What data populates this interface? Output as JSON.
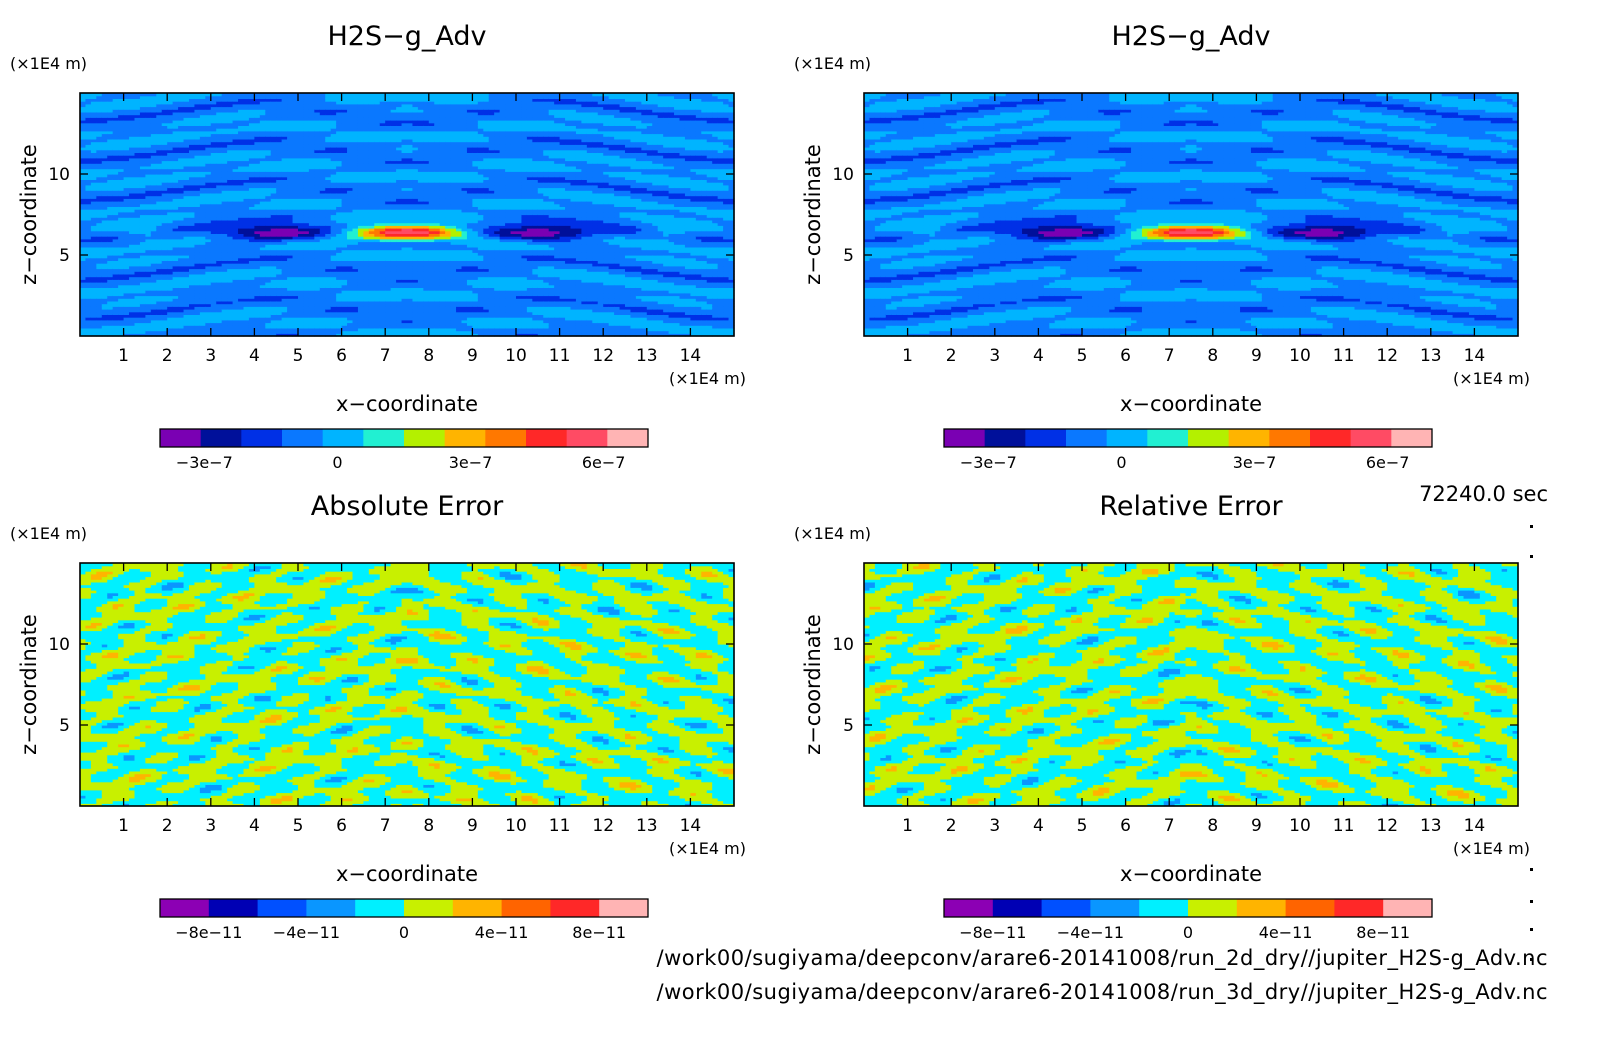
{
  "time_label": "72240.0 sec",
  "file_paths": [
    "/work00/sugiyama/deepconv/arare6-20141008/run_2d_dry//jupiter_H2S-g_Adv.nc",
    "/work00/sugiyama/deepconv/arare6-20141008/run_3d_dry//jupiter_H2S-g_Adv.nc"
  ],
  "chart_data": [
    {
      "type": "heatmap",
      "title": "H2S−g_Adv",
      "xlabel": "x−coordinate",
      "ylabel": "z−coordinate",
      "x_unit": "(×1E4 m)",
      "y_unit": "(×1E4 m)",
      "xlim": [
        0,
        15
      ],
      "ylim": [
        0,
        15
      ],
      "x_ticks": [
        1,
        2,
        3,
        4,
        5,
        6,
        7,
        8,
        9,
        10,
        11,
        12,
        13,
        14
      ],
      "y_ticks": [
        5,
        10
      ],
      "pattern": "field",
      "colorbar": {
        "levels": [
          -4e-07,
          -3e-07,
          -2e-07,
          -1e-07,
          0,
          1e-07,
          2e-07,
          3e-07,
          4e-07,
          5e-07,
          6e-07,
          7e-07
        ],
        "colors": [
          "#7a00b3",
          "#00109a",
          "#0030e6",
          "#0a78ff",
          "#00b4ff",
          "#21f0d2",
          "#b4f000",
          "#ffb400",
          "#ff7800",
          "#ff2828",
          "#ff4b64",
          "#ffb4b4"
        ],
        "tick_values": [
          -3e-07,
          0,
          3e-07,
          6e-07
        ],
        "tick_labels": [
          "−3e−7",
          "0",
          "3e−7",
          "6e−7"
        ]
      }
    },
    {
      "type": "heatmap",
      "title": "H2S−g_Adv",
      "xlabel": "x−coordinate",
      "ylabel": "z−coordinate",
      "x_unit": "(×1E4 m)",
      "y_unit": "(×1E4 m)",
      "xlim": [
        0,
        15
      ],
      "ylim": [
        0,
        15
      ],
      "x_ticks": [
        1,
        2,
        3,
        4,
        5,
        6,
        7,
        8,
        9,
        10,
        11,
        12,
        13,
        14
      ],
      "y_ticks": [
        5,
        10
      ],
      "pattern": "field",
      "colorbar": {
        "levels": [
          -4e-07,
          -3e-07,
          -2e-07,
          -1e-07,
          0,
          1e-07,
          2e-07,
          3e-07,
          4e-07,
          5e-07,
          6e-07,
          7e-07
        ],
        "colors": [
          "#7a00b3",
          "#00109a",
          "#0030e6",
          "#0a78ff",
          "#00b4ff",
          "#21f0d2",
          "#b4f000",
          "#ffb400",
          "#ff7800",
          "#ff2828",
          "#ff4b64",
          "#ffb4b4"
        ],
        "tick_values": [
          -3e-07,
          0,
          3e-07,
          6e-07
        ],
        "tick_labels": [
          "−3e−7",
          "0",
          "3e−7",
          "6e−7"
        ]
      }
    },
    {
      "type": "heatmap",
      "title": "Absolute Error",
      "xlabel": "x−coordinate",
      "ylabel": "z−coordinate",
      "x_unit": "(×1E4 m)",
      "y_unit": "(×1E4 m)",
      "xlim": [
        0,
        15
      ],
      "ylim": [
        0,
        15
      ],
      "x_ticks": [
        1,
        2,
        3,
        4,
        5,
        6,
        7,
        8,
        9,
        10,
        11,
        12,
        13,
        14
      ],
      "y_ticks": [
        5,
        10
      ],
      "pattern": "noise",
      "colorbar": {
        "levels": [
          -1e-10,
          -8e-11,
          -6e-11,
          -4e-11,
          -2e-11,
          0,
          2e-11,
          4e-11,
          6e-11,
          8e-11,
          1e-10
        ],
        "colors": [
          "#8c00b4",
          "#0000b4",
          "#0050ff",
          "#0a96ff",
          "#00f0ff",
          "#c8f000",
          "#ffb400",
          "#ff6400",
          "#ff2828",
          "#ffb4b4"
        ],
        "tick_values": [
          -8e-11,
          -4e-11,
          0,
          4e-11,
          8e-11
        ],
        "tick_labels": [
          "−8e−11",
          "−4e−11",
          "0",
          "4e−11",
          "8e−11"
        ]
      }
    },
    {
      "type": "heatmap",
      "title": "Relative Error",
      "xlabel": "x−coordinate",
      "ylabel": "z−coordinate",
      "x_unit": "(×1E4 m)",
      "y_unit": "(×1E4 m)",
      "xlim": [
        0,
        15
      ],
      "ylim": [
        0,
        15
      ],
      "x_ticks": [
        1,
        2,
        3,
        4,
        5,
        6,
        7,
        8,
        9,
        10,
        11,
        12,
        13,
        14
      ],
      "y_ticks": [
        5,
        10
      ],
      "pattern": "noise2",
      "colorbar": {
        "levels": [
          -1e-10,
          -8e-11,
          -6e-11,
          -4e-11,
          -2e-11,
          0,
          2e-11,
          4e-11,
          6e-11,
          8e-11,
          1e-10
        ],
        "colors": [
          "#8c00b4",
          "#0000b4",
          "#0050ff",
          "#0a96ff",
          "#00f0ff",
          "#c8f000",
          "#ffb400",
          "#ff6400",
          "#ff2828",
          "#ffb4b4"
        ],
        "tick_values": [
          -8e-11,
          -4e-11,
          0,
          4e-11,
          8e-11
        ],
        "tick_labels": [
          "−8e−11",
          "−4e−11",
          "0",
          "4e−11",
          "8e−11"
        ]
      }
    }
  ]
}
